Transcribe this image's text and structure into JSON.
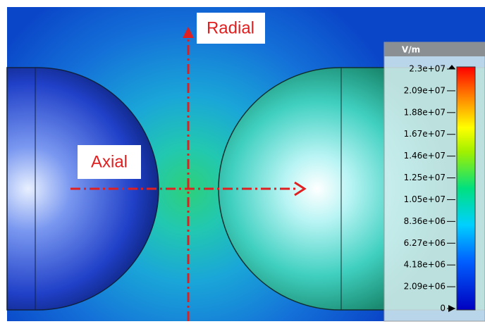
{
  "labels": {
    "radial": "Radial",
    "axial": "Axial"
  },
  "colorbar": {
    "unit": "V/m",
    "ticks": [
      "2.3e+07",
      "2.09e+07",
      "1.88e+07",
      "1.67e+07",
      "1.46e+07",
      "1.25e+07",
      "1.05e+07",
      "8.36e+06",
      "6.27e+06",
      "4.18e+06",
      "2.09e+06",
      "0"
    ]
  }
}
